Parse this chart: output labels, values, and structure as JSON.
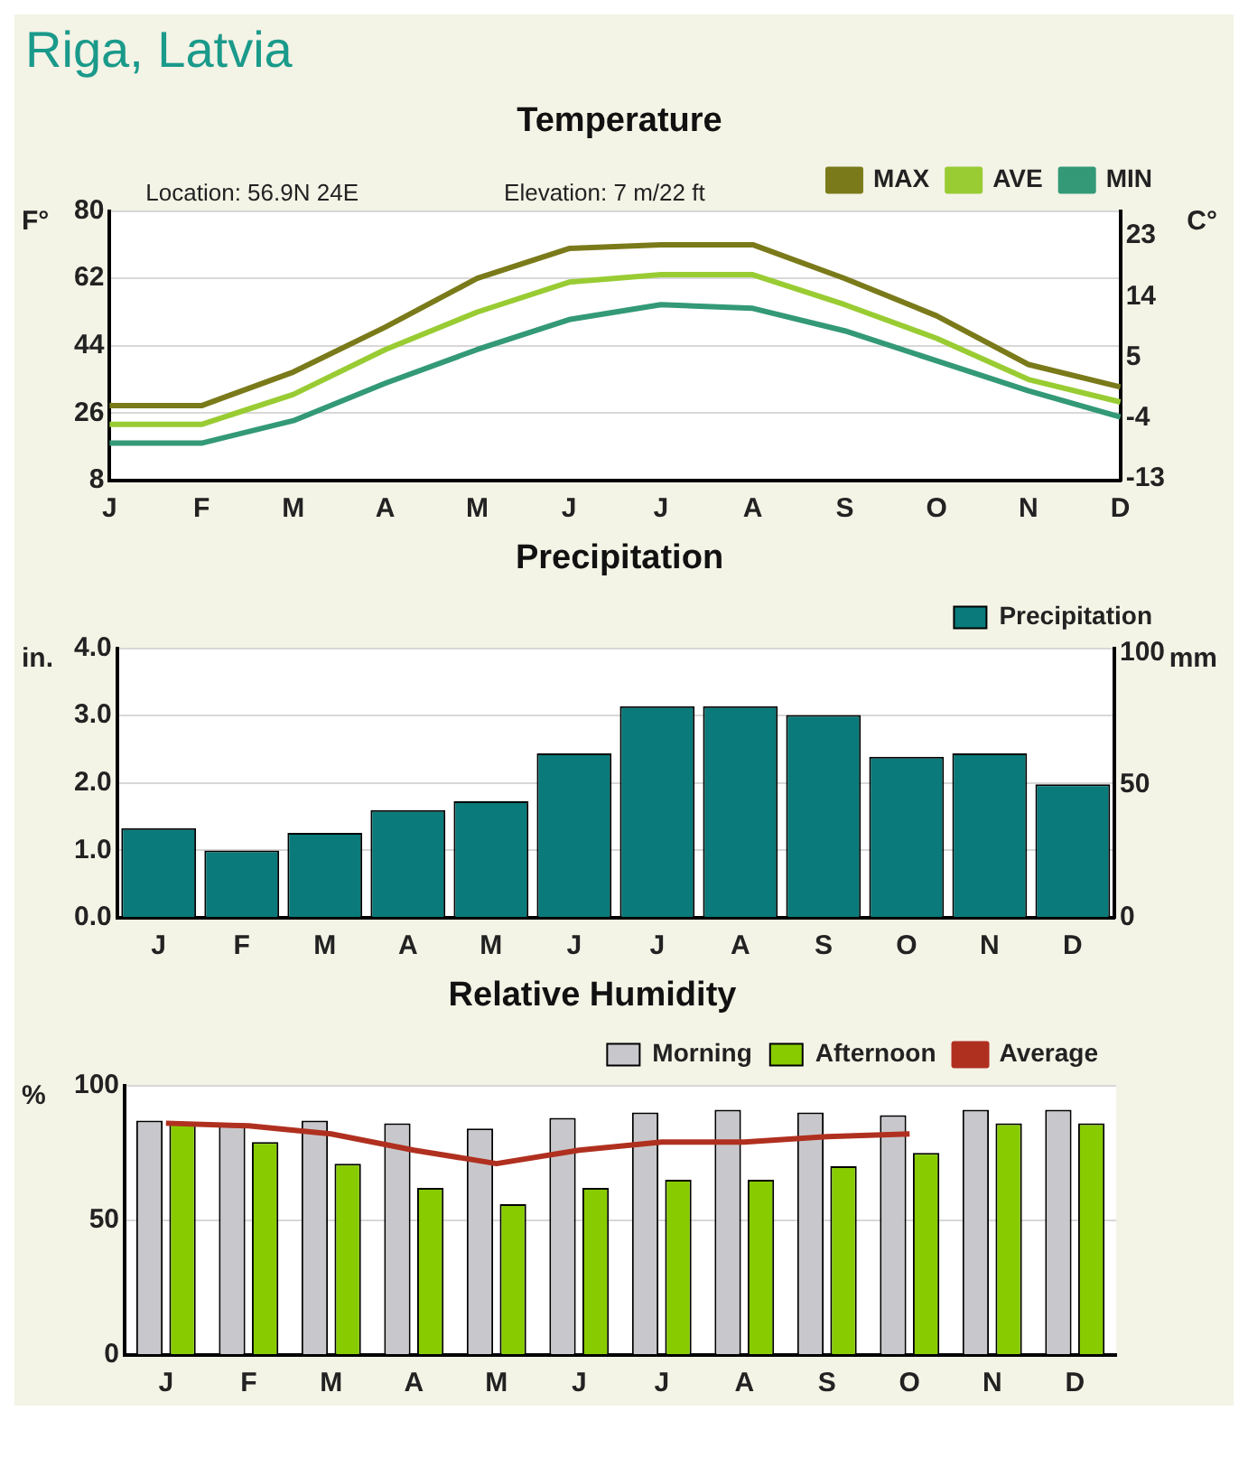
{
  "chart_data": [
    {
      "type": "other",
      "title": "Riga, Latvia"
    },
    {
      "type": "line",
      "title": "Temperature",
      "annotations": [
        "Location: 56.9N 24E",
        "Elevation: 7 m/22 ft"
      ],
      "ylabel": "F°",
      "y2label": "C°",
      "categories": [
        "J",
        "F",
        "M",
        "A",
        "M",
        "J",
        "J",
        "A",
        "S",
        "O",
        "N",
        "D"
      ],
      "series": [
        {
          "name": "MAX",
          "color": "#7a7a1a",
          "values": [
            28,
            28,
            37,
            49,
            62,
            70,
            71,
            71,
            62,
            52,
            39,
            33
          ]
        },
        {
          "name": "AVE",
          "color": "#99cc33",
          "values": [
            23,
            23,
            31,
            43,
            53,
            61,
            63,
            63,
            55,
            46,
            35,
            29
          ]
        },
        {
          "name": "MIN",
          "color": "#339977",
          "values": [
            18,
            18,
            24,
            34,
            43,
            51,
            55,
            54,
            48,
            40,
            32,
            25
          ]
        }
      ],
      "ylim": [
        8,
        80
      ],
      "yticks": [
        8,
        26,
        44,
        62,
        80
      ],
      "y2lim": [
        -13.3,
        26.7
      ],
      "y2ticks": [
        -13,
        -4,
        5,
        14,
        23
      ],
      "grid": "y",
      "legend": "top right",
      "marker": "none"
    },
    {
      "type": "bar",
      "title": "Precipitation",
      "ylabel": "in.",
      "y2label": "mm",
      "categories": [
        "J",
        "F",
        "M",
        "A",
        "M",
        "J",
        "J",
        "A",
        "S",
        "O",
        "N",
        "D"
      ],
      "series": [
        {
          "name": "Precipitation",
          "color": "#0a7a7a",
          "values": [
            1.33,
            1.0,
            1.26,
            1.6,
            1.73,
            2.44,
            3.14,
            3.14,
            3.01,
            2.39,
            2.44,
            1.98
          ]
        }
      ],
      "ylim": [
        0,
        4
      ],
      "yticks": [
        {
          "value": 0,
          "label": "0.0"
        },
        {
          "value": 1,
          "label": "1.0"
        },
        {
          "value": 2,
          "label": "2.0"
        },
        {
          "value": 3,
          "label": "3.0"
        },
        {
          "value": 4,
          "label": "4.0"
        }
      ],
      "y2lim": [
        0,
        101.6
      ],
      "y2ticks": [
        0,
        50,
        100
      ],
      "grid": "y",
      "legend": "top right"
    },
    {
      "type": "bar",
      "title": "Relative Humidity",
      "ylabel": "%",
      "categories": [
        "J",
        "F",
        "M",
        "A",
        "M",
        "J",
        "J",
        "A",
        "S",
        "O",
        "N",
        "D"
      ],
      "series": [
        {
          "name": "Morning",
          "color": "#c8c8cc",
          "values": [
            87,
            86,
            87,
            86,
            84,
            88,
            90,
            91,
            90,
            89,
            91,
            91
          ]
        },
        {
          "name": "Afternoon",
          "color": "#88cc00",
          "values": [
            86,
            79,
            71,
            62,
            56,
            62,
            65,
            65,
            70,
            75,
            86,
            86
          ]
        },
        {
          "name": "Average",
          "type": "line",
          "color": "#b03020",
          "values": [
            86,
            85,
            82,
            76,
            71,
            76,
            79,
            79,
            81,
            82,
            null,
            null
          ]
        }
      ],
      "ylim": [
        0,
        100
      ],
      "yticks": [
        0,
        50,
        100
      ],
      "grid": "y",
      "legend": "top right",
      "marker": "none"
    }
  ]
}
